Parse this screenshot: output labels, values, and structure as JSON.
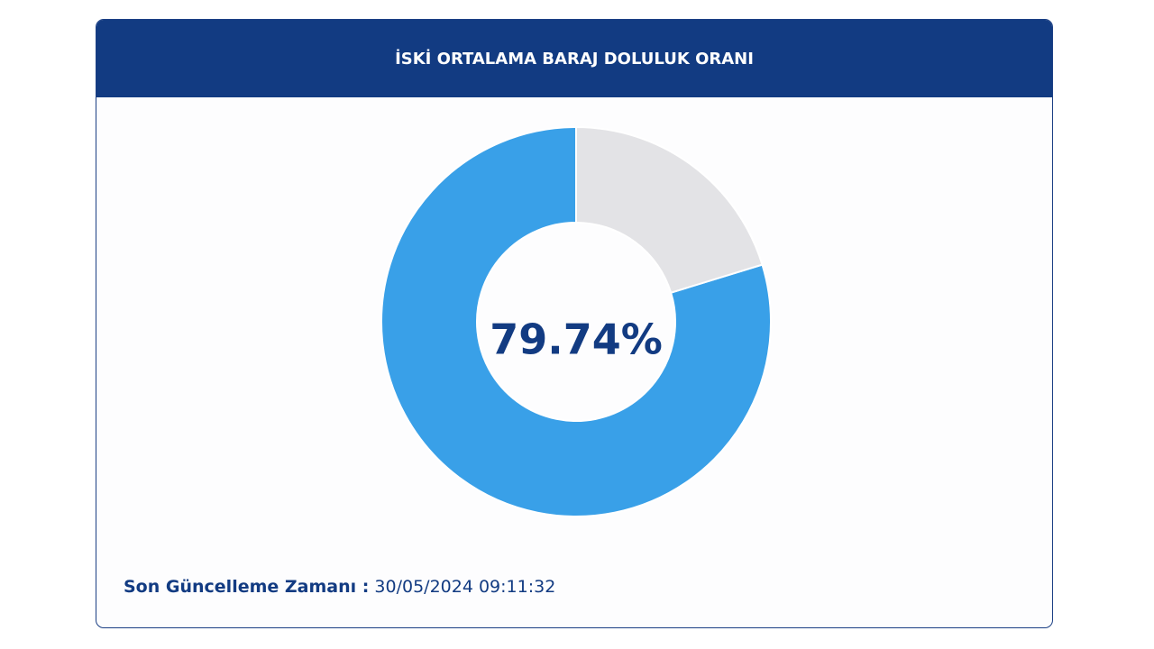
{
  "chart_data": {
    "type": "donut",
    "title": "İSKİ ORTALAMA BARAJ DOLULUK ORANI",
    "values": [
      79.74,
      20.26
    ],
    "value_labels": [
      "79.74%",
      null
    ],
    "colors": [
      "#39a0e8",
      "#e3e3e6"
    ],
    "direction": "counterclockwise"
  },
  "footer": {
    "label": "Son Güncelleme Zamanı :",
    "value": "30/05/2024 09:11:32"
  }
}
